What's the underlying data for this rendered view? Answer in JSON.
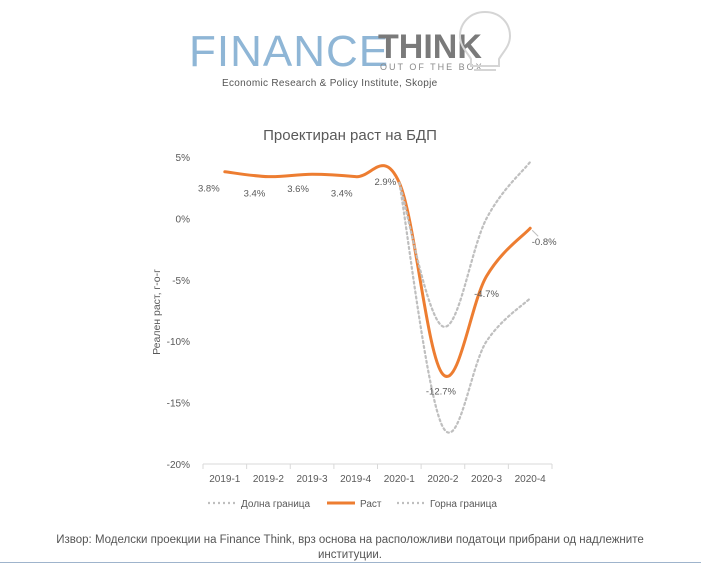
{
  "logo": {
    "finance": "FINANCE",
    "think": "THINK",
    "tagline": "OUT OF THE BOX",
    "subtitle": "Economic Research & Policy Institute, Skopje"
  },
  "source_note": "Извор: Моделски проекции на Finance Think, врз основа на расположливи податоци прибрани од надлежните институции.",
  "colors": {
    "growth": "#ed7d31",
    "bounds": "#bfbfbf",
    "axis_text": "#595959",
    "gridline": "#d9d9d9",
    "logo_blue": "#8fb6d6",
    "logo_gray": "#7a7a7a"
  },
  "chart_data": {
    "type": "line",
    "title": "Проектиран раст на БДП",
    "xlabel": "",
    "ylabel": "Реален раст, г-о-г",
    "categories": [
      "2019-1",
      "2019-2",
      "2019-3",
      "2019-4",
      "2020-1",
      "2020-2",
      "2020-3",
      "2020-4"
    ],
    "y_ticks": [
      "5%",
      "0%",
      "-5%",
      "-10%",
      "-15%",
      "-20%"
    ],
    "ylim": [
      -20,
      5
    ],
    "series": [
      {
        "name": "Долна граница",
        "values": [
          null,
          null,
          null,
          null,
          2.9,
          -17.0,
          -10.0,
          -6.5
        ],
        "style": "dotted"
      },
      {
        "name": "Раст",
        "values": [
          3.8,
          3.4,
          3.6,
          3.4,
          2.9,
          -12.7,
          -4.7,
          -0.8
        ],
        "style": "solid",
        "data_labels": [
          "3.8%",
          "3.4%",
          "3.6%",
          "3.4%",
          "2.9%",
          "-12.7%",
          "-4.7%",
          "-0.8%"
        ]
      },
      {
        "name": "Горна граница",
        "values": [
          null,
          null,
          null,
          null,
          2.9,
          -8.8,
          0.0,
          4.6
        ],
        "style": "dotted"
      }
    ],
    "legend": "bottom",
    "grid": false
  }
}
